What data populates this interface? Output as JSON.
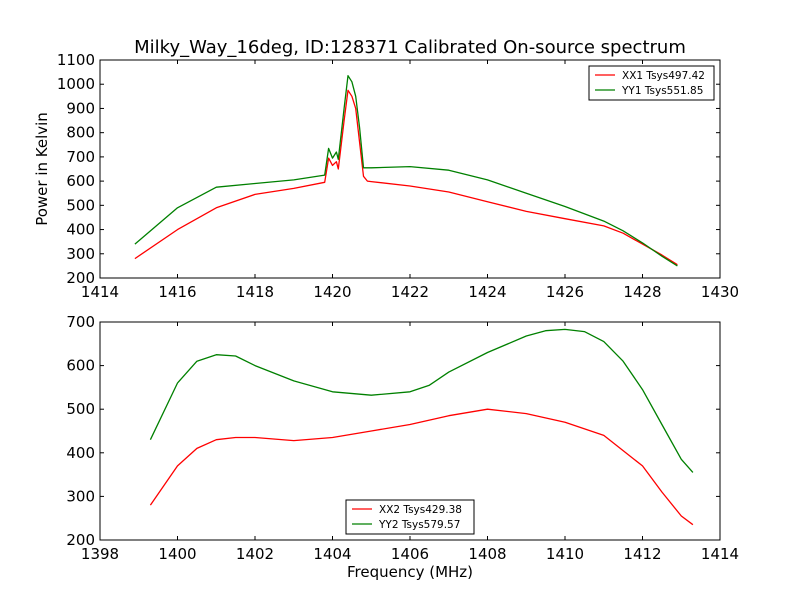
{
  "chart_data": [
    {
      "type": "line",
      "title": "Milky_Way_16deg, ID:128371 Calibrated On-source spectrum",
      "xlabel": "",
      "ylabel": "Power in Kelvin",
      "xlim": [
        1414,
        1430
      ],
      "ylim": [
        200,
        1100
      ],
      "xticks": [
        1414,
        1416,
        1418,
        1420,
        1422,
        1424,
        1426,
        1428,
        1430
      ],
      "yticks": [
        200,
        300,
        400,
        500,
        600,
        700,
        800,
        900,
        1000,
        1100
      ],
      "legend_position": "top-right",
      "series": [
        {
          "name": "XX1 Tsys497.42",
          "color": "#ff0000",
          "x": [
            1414.9,
            1416,
            1417,
            1418,
            1419,
            1419.8,
            1419.9,
            1420.0,
            1420.1,
            1420.15,
            1420.3,
            1420.4,
            1420.5,
            1420.6,
            1420.7,
            1420.8,
            1420.9,
            1421,
            1422,
            1423,
            1424,
            1425,
            1426,
            1427,
            1427.5,
            1428,
            1428.5,
            1428.9
          ],
          "y": [
            280,
            400,
            490,
            545,
            570,
            595,
            695,
            665,
            680,
            650,
            850,
            975,
            950,
            900,
            760,
            620,
            600,
            598,
            580,
            555,
            515,
            475,
            445,
            415,
            385,
            340,
            295,
            255
          ]
        },
        {
          "name": "YY1 Tsys551.85",
          "color": "#008000",
          "x": [
            1414.9,
            1416,
            1417,
            1418,
            1419,
            1419.8,
            1419.9,
            1420.0,
            1420.1,
            1420.15,
            1420.3,
            1420.4,
            1420.5,
            1420.6,
            1420.7,
            1420.8,
            1421,
            1422,
            1423,
            1424,
            1425,
            1426,
            1427,
            1427.5,
            1428,
            1428.5,
            1428.9
          ],
          "y": [
            340,
            490,
            575,
            590,
            605,
            625,
            735,
            695,
            720,
            690,
            900,
            1035,
            1010,
            950,
            820,
            655,
            655,
            660,
            645,
            605,
            550,
            495,
            435,
            395,
            345,
            290,
            250
          ]
        }
      ]
    },
    {
      "type": "line",
      "title": "",
      "xlabel": "Frequency (MHz)",
      "ylabel": "",
      "xlim": [
        1398,
        1414
      ],
      "ylim": [
        200,
        700
      ],
      "xticks": [
        1398,
        1400,
        1402,
        1404,
        1406,
        1408,
        1410,
        1412,
        1414
      ],
      "yticks": [
        200,
        300,
        400,
        500,
        600,
        700
      ],
      "legend_position": "bottom-center",
      "series": [
        {
          "name": "XX2 Tsys429.38",
          "color": "#ff0000",
          "x": [
            1399.3,
            1400,
            1400.5,
            1401,
            1401.5,
            1402,
            1403,
            1404,
            1405,
            1406,
            1407,
            1408,
            1409,
            1410,
            1411,
            1412,
            1412.5,
            1413,
            1413.3
          ],
          "y": [
            280,
            370,
            410,
            430,
            435,
            435,
            428,
            435,
            450,
            465,
            485,
            500,
            490,
            470,
            440,
            370,
            310,
            255,
            235
          ]
        },
        {
          "name": "YY2 Tsys579.57",
          "color": "#008000",
          "x": [
            1399.3,
            1400,
            1400.5,
            1401,
            1401.5,
            1402,
            1403,
            1404,
            1405,
            1406,
            1406.5,
            1407,
            1408,
            1409,
            1409.5,
            1410,
            1410.5,
            1411,
            1411.5,
            1412,
            1412.5,
            1413,
            1413.3
          ],
          "y": [
            430,
            560,
            610,
            625,
            622,
            600,
            565,
            540,
            532,
            540,
            555,
            585,
            630,
            668,
            680,
            683,
            678,
            655,
            610,
            545,
            465,
            385,
            355
          ]
        }
      ]
    }
  ]
}
